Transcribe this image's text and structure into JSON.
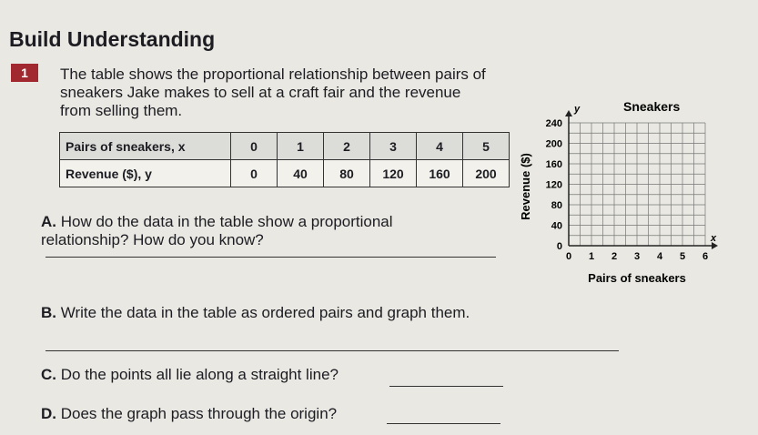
{
  "header": {
    "title": "Build Understanding"
  },
  "problem": {
    "number": "1",
    "text": "The table shows the proportional relationship between pairs of sneakers Jake makes to sell at a craft fair and the revenue from selling them."
  },
  "table": {
    "rows": [
      [
        "Pairs of sneakers, x",
        0,
        1,
        2,
        3,
        4,
        5
      ],
      [
        "Revenue ($), y",
        0,
        40,
        80,
        120,
        160,
        200
      ]
    ]
  },
  "questions": [
    {
      "label": "A.",
      "text": "How do the data in the table show a proportional relationship? How do you know?"
    },
    {
      "label": "B.",
      "text": "Write the data in the table as ordered pairs and graph them."
    },
    {
      "label": "C.",
      "text": "Do the points all lie along a straight line?"
    },
    {
      "label": "D.",
      "text": "Does the graph pass through the origin?"
    }
  ],
  "graph": {
    "title": "Sneakers",
    "y_label": "Revenue ($)",
    "x_label": "Pairs of sneakers",
    "y_letter": "y",
    "x_letter": "x",
    "yticks": [
      0,
      40,
      80,
      120,
      160,
      200,
      240
    ],
    "xticks": [
      0,
      1,
      2,
      3,
      4,
      5,
      6
    ]
  }
}
